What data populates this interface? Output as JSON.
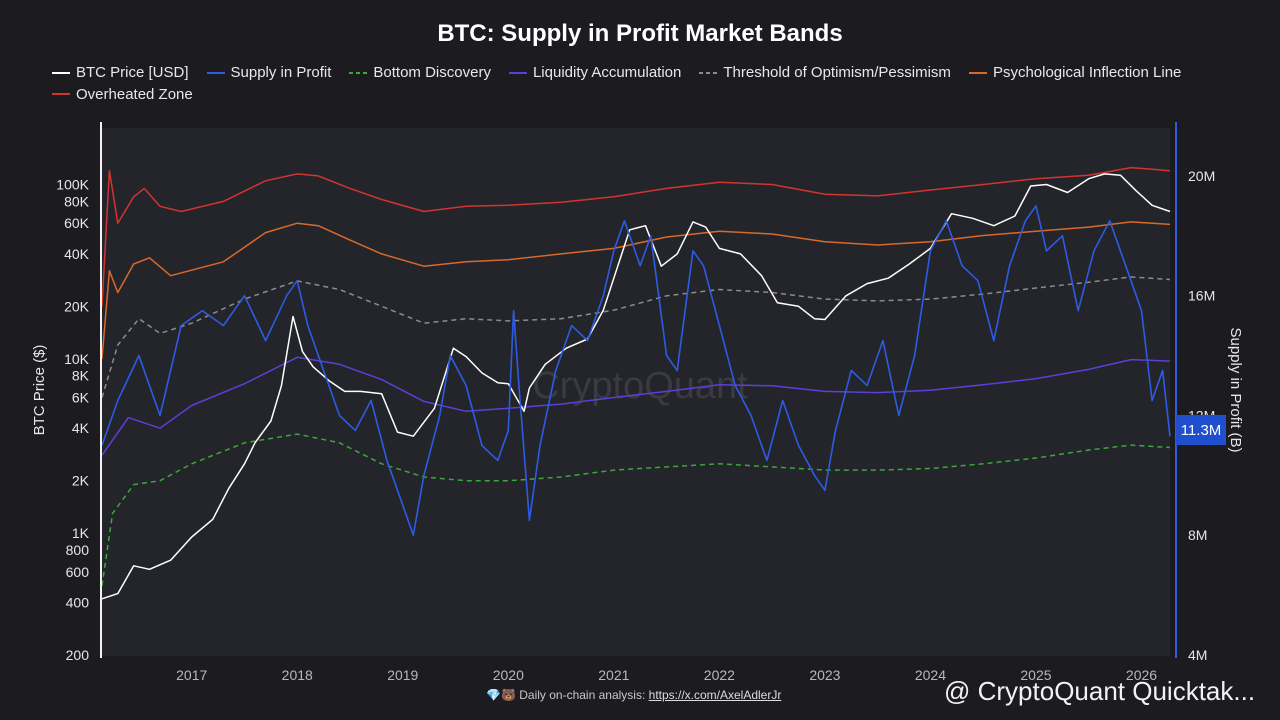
{
  "title": "BTC: Supply in Profit Market Bands",
  "legend": [
    {
      "label": "BTC Price [USD]",
      "color": "#ffffff",
      "dash": false
    },
    {
      "label": "Supply in Profit",
      "color": "#2d5be3",
      "dash": false
    },
    {
      "label": "Bottom Discovery",
      "color": "#3aa83a",
      "dash": true
    },
    {
      "label": "Liquidity Accumulation",
      "color": "#5b3fd8",
      "dash": false
    },
    {
      "label": "Threshold of Optimism/Pessimism",
      "color": "#8c8c8c",
      "dash": true
    },
    {
      "label": "Psychological Inflection Line",
      "color": "#d9692a",
      "dash": false
    },
    {
      "label": "Overheated Zone",
      "color": "#d2342f",
      "dash": false
    }
  ],
  "footer": {
    "prefix": "Daily on-chain analysis:",
    "link": "https://x.com/AxelAdlerJr"
  },
  "brand": "@ CryptoQuant Quicktak...",
  "watermark": "CryptoQuant",
  "current_badge": "11.3M",
  "chart_data": {
    "type": "line",
    "left_axis": {
      "label": "BTC Price ($)",
      "scale": "log",
      "range": [
        200,
        180000
      ],
      "ticks": [
        {
          "v": 200,
          "t": "200"
        },
        {
          "v": 400,
          "t": "400"
        },
        {
          "v": 600,
          "t": "600"
        },
        {
          "v": 800,
          "t": "800"
        },
        {
          "v": 1000,
          "t": "1K"
        },
        {
          "v": 2000,
          "t": "2K"
        },
        {
          "v": 4000,
          "t": "4K"
        },
        {
          "v": 6000,
          "t": "6K"
        },
        {
          "v": 8000,
          "t": "8K"
        },
        {
          "v": 10000,
          "t": "10K"
        },
        {
          "v": 20000,
          "t": "20K"
        },
        {
          "v": 40000,
          "t": "40K"
        },
        {
          "v": 60000,
          "t": "60K"
        },
        {
          "v": 80000,
          "t": "80K"
        },
        {
          "v": 100000,
          "t": "100K"
        }
      ]
    },
    "right_axis": {
      "label": "Supply in Profit (B)",
      "scale": "linear",
      "range": [
        4000000,
        21600000
      ],
      "ticks": [
        {
          "v": 4000000,
          "t": "4M"
        },
        {
          "v": 8000000,
          "t": "8M"
        },
        {
          "v": 12000000,
          "t": "12M"
        },
        {
          "v": 16000000,
          "t": "16M"
        },
        {
          "v": 20000000,
          "t": "20M"
        }
      ]
    },
    "x_axis": {
      "range": [
        2016.15,
        2026.27
      ],
      "ticks": [
        {
          "v": 2017,
          "t": "2017"
        },
        {
          "v": 2018,
          "t": "2018"
        },
        {
          "v": 2019,
          "t": "2019"
        },
        {
          "v": 2020,
          "t": "2020"
        },
        {
          "v": 2021,
          "t": "2021"
        },
        {
          "v": 2022,
          "t": "2022"
        },
        {
          "v": 2023,
          "t": "2023"
        },
        {
          "v": 2024,
          "t": "2024"
        },
        {
          "v": 2025,
          "t": "2025"
        },
        {
          "v": 2026,
          "t": "2026"
        }
      ]
    },
    "grid": false,
    "legend_position": "top-left",
    "series": [
      {
        "name": "Overheated Zone",
        "color": "#d2342f",
        "dash": false,
        "axis": "left",
        "x": [
          2016.15,
          2016.22,
          2016.3,
          2016.45,
          2016.55,
          2016.7,
          2016.9,
          2017.3,
          2017.7,
          2018.0,
          2018.2,
          2018.5,
          2018.8,
          2019.2,
          2019.6,
          2020.0,
          2020.5,
          2021.0,
          2021.5,
          2022.0,
          2022.5,
          2023.0,
          2023.5,
          2024.0,
          2024.5,
          2025.0,
          2025.5,
          2025.9,
          2026.27
        ],
        "y": [
          20000,
          120000,
          60000,
          85000,
          95000,
          75000,
          70000,
          80000,
          105000,
          115000,
          112000,
          95000,
          82000,
          70000,
          75000,
          76000,
          79000,
          85000,
          95000,
          103000,
          100000,
          88000,
          86000,
          93000,
          100000,
          108000,
          113000,
          125000,
          120000
        ]
      },
      {
        "name": "Psychological Inflection Line",
        "color": "#d9692a",
        "dash": false,
        "axis": "left",
        "x": [
          2016.15,
          2016.22,
          2016.3,
          2016.45,
          2016.6,
          2016.8,
          2017.3,
          2017.7,
          2018.0,
          2018.2,
          2018.5,
          2018.8,
          2019.2,
          2019.6,
          2020.0,
          2020.5,
          2021.0,
          2021.5,
          2022.0,
          2022.5,
          2023.0,
          2023.5,
          2024.0,
          2024.5,
          2025.0,
          2025.5,
          2025.9,
          2026.27
        ],
        "y": [
          10000,
          32000,
          24000,
          35000,
          38000,
          30000,
          36000,
          53000,
          60000,
          58000,
          48000,
          40000,
          34000,
          36000,
          37000,
          40000,
          43000,
          50000,
          54000,
          52000,
          47000,
          45000,
          47000,
          51000,
          54000,
          57000,
          61000,
          59000
        ]
      },
      {
        "name": "Threshold of Optimism/Pessimism",
        "color": "#8c8c8c",
        "dash": true,
        "axis": "left",
        "x": [
          2016.15,
          2016.3,
          2016.5,
          2016.7,
          2017.0,
          2017.5,
          2018.0,
          2018.4,
          2018.8,
          2019.2,
          2019.6,
          2020.0,
          2020.5,
          2021.0,
          2021.5,
          2022.0,
          2022.5,
          2023.0,
          2023.5,
          2024.0,
          2024.5,
          2025.0,
          2025.5,
          2025.9,
          2026.27
        ],
        "y": [
          6000,
          12000,
          17000,
          14000,
          16000,
          22000,
          28000,
          25000,
          20000,
          16000,
          17000,
          16500,
          17000,
          19000,
          23000,
          25000,
          24000,
          22000,
          21500,
          22000,
          23500,
          25500,
          27500,
          29500,
          28500
        ]
      },
      {
        "name": "Liquidity Accumulation",
        "color": "#5b3fd8",
        "dash": false,
        "axis": "left",
        "x": [
          2016.15,
          2016.4,
          2016.7,
          2017.0,
          2017.5,
          2018.0,
          2018.4,
          2018.8,
          2019.2,
          2019.6,
          2020.0,
          2020.5,
          2021.0,
          2021.5,
          2022.0,
          2022.5,
          2023.0,
          2023.5,
          2024.0,
          2024.5,
          2025.0,
          2025.5,
          2025.9,
          2026.27
        ],
        "y": [
          2800,
          4600,
          4000,
          5400,
          7200,
          10200,
          9300,
          7600,
          5700,
          5000,
          5200,
          5500,
          6000,
          6500,
          7100,
          7000,
          6500,
          6400,
          6600,
          7100,
          7700,
          8700,
          9900,
          9700
        ]
      },
      {
        "name": "Bottom Discovery",
        "color": "#3aa83a",
        "dash": true,
        "axis": "left",
        "x": [
          2016.15,
          2016.25,
          2016.45,
          2016.7,
          2017.0,
          2017.5,
          2018.0,
          2018.4,
          2018.8,
          2019.2,
          2019.6,
          2020.0,
          2020.5,
          2021.0,
          2021.5,
          2022.0,
          2022.5,
          2023.0,
          2023.5,
          2024.0,
          2024.5,
          2025.0,
          2025.5,
          2025.9,
          2026.27
        ],
        "y": [
          500,
          1300,
          1900,
          2000,
          2500,
          3300,
          3700,
          3300,
          2500,
          2100,
          2000,
          2000,
          2100,
          2300,
          2400,
          2500,
          2400,
          2300,
          2300,
          2350,
          2500,
          2700,
          3000,
          3200,
          3100
        ]
      },
      {
        "name": "BTC Price [USD]",
        "color": "#ffffff",
        "dash": false,
        "axis": "left",
        "x": [
          2016.15,
          2016.3,
          2016.45,
          2016.6,
          2016.8,
          2017.0,
          2017.2,
          2017.35,
          2017.5,
          2017.6,
          2017.75,
          2017.85,
          2017.96,
          2018.05,
          2018.15,
          2018.3,
          2018.45,
          2018.6,
          2018.8,
          2018.95,
          2019.1,
          2019.3,
          2019.48,
          2019.6,
          2019.75,
          2019.9,
          2020.0,
          2020.15,
          2020.2,
          2020.35,
          2020.55,
          2020.75,
          2020.9,
          2021.0,
          2021.15,
          2021.3,
          2021.45,
          2021.6,
          2021.75,
          2021.87,
          2022.0,
          2022.2,
          2022.4,
          2022.55,
          2022.75,
          2022.9,
          2023.0,
          2023.2,
          2023.4,
          2023.6,
          2023.8,
          2024.0,
          2024.2,
          2024.4,
          2024.6,
          2024.8,
          2024.95,
          2025.1,
          2025.3,
          2025.5,
          2025.65,
          2025.8,
          2025.95,
          2026.1,
          2026.27
        ],
        "y": [
          420,
          450,
          650,
          620,
          700,
          950,
          1200,
          1800,
          2500,
          3300,
          4400,
          7000,
          17500,
          11000,
          9000,
          7500,
          6500,
          6500,
          6300,
          3800,
          3600,
          5200,
          11500,
          10300,
          8300,
          7300,
          7200,
          5000,
          6800,
          9300,
          11500,
          13000,
          19000,
          29000,
          55000,
          58000,
          34000,
          40000,
          61000,
          57000,
          43000,
          40000,
          30000,
          21000,
          20000,
          17000,
          16800,
          23000,
          27000,
          29000,
          35000,
          43000,
          68000,
          64000,
          58000,
          66000,
          98000,
          100000,
          90000,
          108000,
          115000,
          113000,
          92000,
          76000,
          70000
        ]
      },
      {
        "name": "Supply in Profit",
        "color": "#2d5be3",
        "dash": false,
        "axis": "right",
        "x": [
          2016.15,
          2016.3,
          2016.5,
          2016.7,
          2016.9,
          2017.1,
          2017.3,
          2017.5,
          2017.7,
          2017.9,
          2018.0,
          2018.1,
          2018.25,
          2018.4,
          2018.55,
          2018.7,
          2018.85,
          2019.0,
          2019.1,
          2019.2,
          2019.35,
          2019.45,
          2019.6,
          2019.75,
          2019.9,
          2020.0,
          2020.05,
          2020.1,
          2020.2,
          2020.3,
          2020.45,
          2020.6,
          2020.75,
          2020.9,
          2021.0,
          2021.1,
          2021.25,
          2021.35,
          2021.5,
          2021.6,
          2021.75,
          2021.85,
          2022.0,
          2022.15,
          2022.3,
          2022.45,
          2022.6,
          2022.75,
          2022.9,
          2023.0,
          2023.1,
          2023.25,
          2023.4,
          2023.55,
          2023.7,
          2023.85,
          2024.0,
          2024.15,
          2024.3,
          2024.45,
          2024.6,
          2024.75,
          2024.9,
          2025.0,
          2025.1,
          2025.25,
          2025.4,
          2025.55,
          2025.7,
          2025.8,
          2025.9,
          2026.0,
          2026.1,
          2026.2,
          2026.27
        ],
        "y": [
          11000,
          12500,
          14000,
          12000,
          15000,
          15500,
          15000,
          16000,
          14500,
          16000,
          16500,
          15000,
          13500,
          12000,
          11500,
          12500,
          10500,
          9000,
          8000,
          10000,
          12000,
          14000,
          13000,
          11000,
          10500,
          11500,
          15500,
          13000,
          8500,
          11000,
          13500,
          15000,
          14500,
          16000,
          17500,
          18500,
          17000,
          18000,
          14000,
          13500,
          17500,
          17000,
          15000,
          13000,
          12000,
          10500,
          12500,
          11000,
          10000,
          9500,
          11500,
          13500,
          13000,
          14500,
          12000,
          14000,
          17500,
          18500,
          17000,
          16500,
          14500,
          17000,
          18500,
          19000,
          17500,
          18000,
          15500,
          17500,
          18500,
          17500,
          16500,
          15500,
          12500,
          13500,
          11300
        ]
      }
    ]
  }
}
